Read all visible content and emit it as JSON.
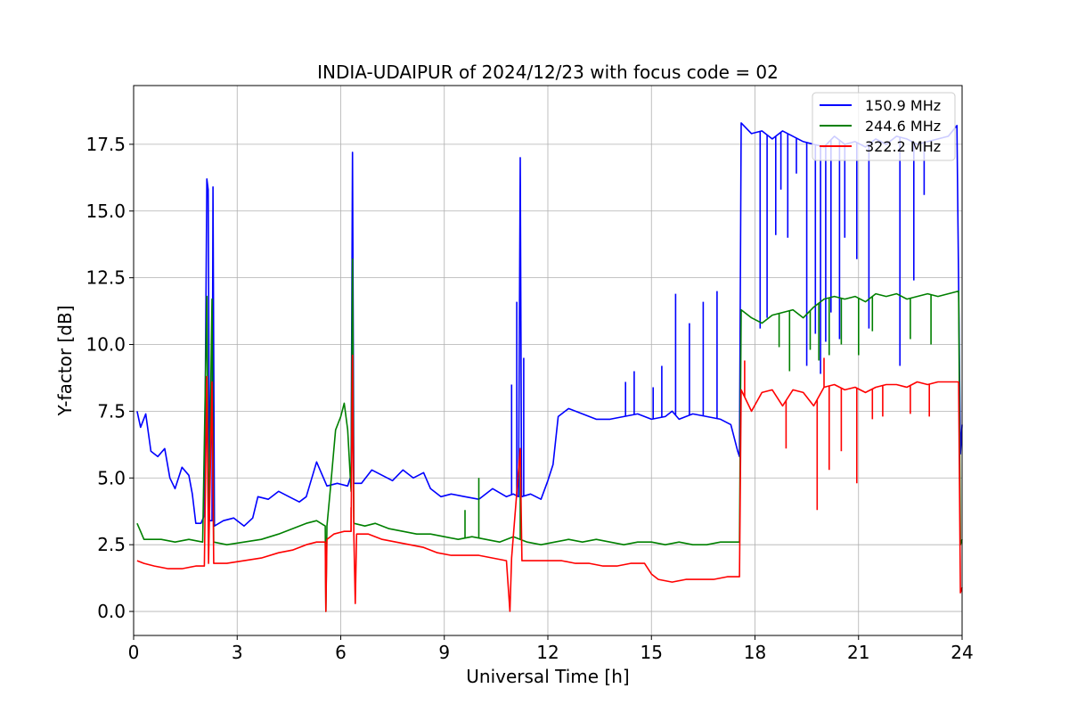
{
  "chart_data": {
    "type": "line",
    "title": "INDIA-UDAIPUR of 2024/12/23 with focus code = 02",
    "xlabel": "Universal Time [h]",
    "ylabel": "Y-factor [dB]",
    "xlim": [
      0,
      24
    ],
    "ylim": [
      -0.9,
      19.7
    ],
    "xticks": [
      0,
      3,
      6,
      9,
      12,
      15,
      18,
      21,
      24
    ],
    "yticks": [
      0.0,
      2.5,
      5.0,
      7.5,
      10.0,
      12.5,
      15.0,
      17.5
    ],
    "ytick_labels": [
      "0.0",
      "2.5",
      "5.0",
      "7.5",
      "10.0",
      "12.5",
      "15.0",
      "17.5"
    ],
    "grid": true,
    "legend_position": "top-right",
    "series": [
      {
        "name": "150.9 MHz",
        "color": "#0000ff",
        "points": [
          [
            0.1,
            7.5
          ],
          [
            0.2,
            6.9
          ],
          [
            0.35,
            7.4
          ],
          [
            0.5,
            6.0
          ],
          [
            0.7,
            5.8
          ],
          [
            0.9,
            6.1
          ],
          [
            1.05,
            5.0
          ],
          [
            1.2,
            4.6
          ],
          [
            1.4,
            5.4
          ],
          [
            1.6,
            5.1
          ],
          [
            1.7,
            4.4
          ],
          [
            1.8,
            3.3
          ],
          [
            1.95,
            3.3
          ],
          [
            2.05,
            3.6
          ],
          [
            2.12,
            16.2
          ],
          [
            2.16,
            15.8
          ],
          [
            2.2,
            3.4
          ],
          [
            2.27,
            3.4
          ],
          [
            2.3,
            15.9
          ],
          [
            2.34,
            3.2
          ],
          [
            2.6,
            3.4
          ],
          [
            2.9,
            3.5
          ],
          [
            3.2,
            3.2
          ],
          [
            3.45,
            3.5
          ],
          [
            3.6,
            4.3
          ],
          [
            3.9,
            4.2
          ],
          [
            4.2,
            4.5
          ],
          [
            4.5,
            4.3
          ],
          [
            4.8,
            4.1
          ],
          [
            5.0,
            4.3
          ],
          [
            5.3,
            5.6
          ],
          [
            5.6,
            4.7
          ],
          [
            5.9,
            4.8
          ],
          [
            6.2,
            4.7
          ],
          [
            6.3,
            5.1
          ],
          [
            6.34,
            17.2
          ],
          [
            6.38,
            4.8
          ],
          [
            6.6,
            4.8
          ],
          [
            6.9,
            5.3
          ],
          [
            7.2,
            5.1
          ],
          [
            7.5,
            4.9
          ],
          [
            7.8,
            5.3
          ],
          [
            8.1,
            5.0
          ],
          [
            8.4,
            5.2
          ],
          [
            8.6,
            4.6
          ],
          [
            8.9,
            4.3
          ],
          [
            9.2,
            4.4
          ],
          [
            9.6,
            4.3
          ],
          [
            10.0,
            4.2
          ],
          [
            10.4,
            4.6
          ],
          [
            10.8,
            4.3
          ],
          [
            11.0,
            4.4
          ],
          [
            11.15,
            4.3
          ],
          [
            11.2,
            17.0
          ],
          [
            11.24,
            4.3
          ],
          [
            11.5,
            4.4
          ],
          [
            11.8,
            4.2
          ],
          [
            12.0,
            4.9
          ],
          [
            12.15,
            5.5
          ],
          [
            12.3,
            7.3
          ],
          [
            12.6,
            7.6
          ],
          [
            13.0,
            7.4
          ],
          [
            13.4,
            7.2
          ],
          [
            13.8,
            7.2
          ],
          [
            14.2,
            7.3
          ],
          [
            14.6,
            7.4
          ],
          [
            15.0,
            7.2
          ],
          [
            15.4,
            7.3
          ],
          [
            15.6,
            7.5
          ],
          [
            15.8,
            7.2
          ],
          [
            16.2,
            7.4
          ],
          [
            16.6,
            7.3
          ],
          [
            17.0,
            7.2
          ],
          [
            17.3,
            7.0
          ],
          [
            17.5,
            6.0
          ],
          [
            17.55,
            5.8
          ],
          [
            17.6,
            18.3
          ],
          [
            17.9,
            17.9
          ],
          [
            18.2,
            18.0
          ],
          [
            18.5,
            17.7
          ],
          [
            18.8,
            18.0
          ],
          [
            19.1,
            17.8
          ],
          [
            19.4,
            17.6
          ],
          [
            19.7,
            17.5
          ],
          [
            20.0,
            17.4
          ],
          [
            20.3,
            17.8
          ],
          [
            20.6,
            17.5
          ],
          [
            20.9,
            17.6
          ],
          [
            21.2,
            17.4
          ],
          [
            21.5,
            17.7
          ],
          [
            21.8,
            17.5
          ],
          [
            22.1,
            17.8
          ],
          [
            22.4,
            17.7
          ],
          [
            22.7,
            17.5
          ],
          [
            23.0,
            17.6
          ],
          [
            23.3,
            17.7
          ],
          [
            23.6,
            17.8
          ],
          [
            23.85,
            18.2
          ],
          [
            23.95,
            5.9
          ],
          [
            24.0,
            7.0
          ]
        ],
        "spikes": [
          [
            18.15,
            10.6
          ],
          [
            18.35,
            11.0
          ],
          [
            18.6,
            14.1
          ],
          [
            18.75,
            15.8
          ],
          [
            18.95,
            14.0
          ],
          [
            19.2,
            16.4
          ],
          [
            19.5,
            9.2
          ],
          [
            19.75,
            10.4
          ],
          [
            19.9,
            8.9
          ],
          [
            20.05,
            10.1
          ],
          [
            20.2,
            11.2
          ],
          [
            20.45,
            10.2
          ],
          [
            20.6,
            14.0
          ],
          [
            20.95,
            13.2
          ],
          [
            21.3,
            10.6
          ],
          [
            22.2,
            9.2
          ],
          [
            22.6,
            12.4
          ],
          [
            22.9,
            15.6
          ],
          [
            15.3,
            9.2
          ],
          [
            15.7,
            11.9
          ],
          [
            16.1,
            10.8
          ],
          [
            16.5,
            11.6
          ],
          [
            16.9,
            12.0
          ],
          [
            10.95,
            8.5
          ],
          [
            11.1,
            11.6
          ],
          [
            11.3,
            9.5
          ],
          [
            14.25,
            8.6
          ],
          [
            14.5,
            9.0
          ],
          [
            15.05,
            8.4
          ]
        ]
      },
      {
        "name": "244.6 MHz",
        "color": "#008000",
        "points": [
          [
            0.1,
            3.3
          ],
          [
            0.2,
            3.0
          ],
          [
            0.3,
            2.7
          ],
          [
            0.8,
            2.7
          ],
          [
            1.2,
            2.6
          ],
          [
            1.6,
            2.7
          ],
          [
            2.0,
            2.6
          ],
          [
            2.12,
            11.8
          ],
          [
            2.17,
            2.6
          ],
          [
            2.27,
            11.7
          ],
          [
            2.32,
            2.6
          ],
          [
            2.7,
            2.5
          ],
          [
            3.2,
            2.6
          ],
          [
            3.7,
            2.7
          ],
          [
            4.2,
            2.9
          ],
          [
            4.6,
            3.1
          ],
          [
            5.0,
            3.3
          ],
          [
            5.3,
            3.4
          ],
          [
            5.55,
            3.2
          ],
          [
            5.57,
            0.0
          ],
          [
            5.6,
            3.2
          ],
          [
            5.7,
            4.6
          ],
          [
            5.85,
            6.8
          ],
          [
            6.0,
            7.3
          ],
          [
            6.1,
            7.8
          ],
          [
            6.2,
            6.8
          ],
          [
            6.3,
            4.5
          ],
          [
            6.34,
            13.2
          ],
          [
            6.38,
            3.3
          ],
          [
            6.7,
            3.2
          ],
          [
            7.0,
            3.3
          ],
          [
            7.4,
            3.1
          ],
          [
            7.8,
            3.0
          ],
          [
            8.2,
            2.9
          ],
          [
            8.6,
            2.9
          ],
          [
            9.0,
            2.8
          ],
          [
            9.4,
            2.7
          ],
          [
            9.8,
            2.8
          ],
          [
            10.2,
            2.7
          ],
          [
            10.6,
            2.6
          ],
          [
            11.0,
            2.8
          ],
          [
            11.4,
            2.6
          ],
          [
            11.8,
            2.5
          ],
          [
            12.2,
            2.6
          ],
          [
            12.6,
            2.7
          ],
          [
            13.0,
            2.6
          ],
          [
            13.4,
            2.7
          ],
          [
            13.8,
            2.6
          ],
          [
            14.2,
            2.5
          ],
          [
            14.6,
            2.6
          ],
          [
            15.0,
            2.6
          ],
          [
            15.4,
            2.5
          ],
          [
            15.8,
            2.6
          ],
          [
            16.2,
            2.5
          ],
          [
            16.6,
            2.5
          ],
          [
            17.0,
            2.6
          ],
          [
            17.3,
            2.6
          ],
          [
            17.55,
            2.6
          ],
          [
            17.6,
            11.3
          ],
          [
            17.9,
            11.0
          ],
          [
            18.2,
            10.8
          ],
          [
            18.5,
            11.1
          ],
          [
            18.8,
            11.2
          ],
          [
            19.1,
            11.3
          ],
          [
            19.4,
            11.0
          ],
          [
            19.7,
            11.4
          ],
          [
            20.0,
            11.7
          ],
          [
            20.3,
            11.8
          ],
          [
            20.6,
            11.7
          ],
          [
            20.9,
            11.8
          ],
          [
            21.2,
            11.6
          ],
          [
            21.5,
            11.9
          ],
          [
            21.8,
            11.8
          ],
          [
            22.1,
            11.9
          ],
          [
            22.4,
            11.7
          ],
          [
            22.7,
            11.8
          ],
          [
            23.0,
            11.9
          ],
          [
            23.3,
            11.8
          ],
          [
            23.6,
            11.9
          ],
          [
            23.9,
            12.0
          ],
          [
            23.95,
            2.5
          ],
          [
            24.0,
            2.7
          ]
        ],
        "spikes": [
          [
            10.0,
            5.0
          ],
          [
            11.2,
            6.0
          ],
          [
            9.6,
            3.8
          ],
          [
            18.7,
            9.9
          ],
          [
            19.0,
            9.0
          ],
          [
            19.6,
            9.8
          ],
          [
            19.85,
            9.4
          ],
          [
            20.15,
            9.6
          ],
          [
            20.5,
            10.0
          ],
          [
            21.0,
            9.6
          ],
          [
            21.4,
            10.5
          ],
          [
            22.5,
            10.2
          ],
          [
            23.1,
            10.0
          ]
        ]
      },
      {
        "name": "322.2 MHz",
        "color": "#ff0000",
        "points": [
          [
            0.1,
            1.9
          ],
          [
            0.3,
            1.8
          ],
          [
            0.6,
            1.7
          ],
          [
            1.0,
            1.6
          ],
          [
            1.4,
            1.6
          ],
          [
            1.8,
            1.7
          ],
          [
            2.05,
            1.7
          ],
          [
            2.12,
            8.8
          ],
          [
            2.17,
            1.8
          ],
          [
            2.27,
            8.6
          ],
          [
            2.32,
            1.8
          ],
          [
            2.7,
            1.8
          ],
          [
            3.2,
            1.9
          ],
          [
            3.7,
            2.0
          ],
          [
            4.2,
            2.2
          ],
          [
            4.6,
            2.3
          ],
          [
            5.0,
            2.5
          ],
          [
            5.3,
            2.6
          ],
          [
            5.55,
            2.6
          ],
          [
            5.57,
            0.0
          ],
          [
            5.6,
            2.7
          ],
          [
            5.8,
            2.9
          ],
          [
            6.1,
            3.0
          ],
          [
            6.3,
            3.0
          ],
          [
            6.34,
            9.6
          ],
          [
            6.38,
            2.9
          ],
          [
            6.42,
            0.3
          ],
          [
            6.46,
            2.9
          ],
          [
            6.8,
            2.9
          ],
          [
            7.2,
            2.7
          ],
          [
            7.6,
            2.6
          ],
          [
            8.0,
            2.5
          ],
          [
            8.4,
            2.4
          ],
          [
            8.8,
            2.2
          ],
          [
            9.2,
            2.1
          ],
          [
            9.6,
            2.1
          ],
          [
            10.0,
            2.1
          ],
          [
            10.4,
            2.0
          ],
          [
            10.8,
            1.9
          ],
          [
            10.9,
            0.0
          ],
          [
            10.95,
            2.0
          ],
          [
            11.2,
            6.1
          ],
          [
            11.25,
            1.9
          ],
          [
            11.6,
            1.9
          ],
          [
            12.0,
            1.9
          ],
          [
            12.4,
            1.9
          ],
          [
            12.8,
            1.8
          ],
          [
            13.2,
            1.8
          ],
          [
            13.6,
            1.7
          ],
          [
            14.0,
            1.7
          ],
          [
            14.4,
            1.8
          ],
          [
            14.8,
            1.8
          ],
          [
            15.0,
            1.4
          ],
          [
            15.2,
            1.2
          ],
          [
            15.6,
            1.1
          ],
          [
            16.0,
            1.2
          ],
          [
            16.4,
            1.2
          ],
          [
            16.8,
            1.2
          ],
          [
            17.2,
            1.3
          ],
          [
            17.55,
            1.3
          ],
          [
            17.6,
            8.3
          ],
          [
            17.9,
            7.5
          ],
          [
            18.2,
            8.2
          ],
          [
            18.5,
            8.3
          ],
          [
            18.8,
            7.7
          ],
          [
            19.1,
            8.3
          ],
          [
            19.4,
            8.2
          ],
          [
            19.7,
            7.7
          ],
          [
            20.0,
            8.4
          ],
          [
            20.3,
            8.5
          ],
          [
            20.6,
            8.3
          ],
          [
            20.9,
            8.4
          ],
          [
            21.2,
            8.2
          ],
          [
            21.5,
            8.4
          ],
          [
            21.8,
            8.5
          ],
          [
            22.1,
            8.5
          ],
          [
            22.4,
            8.4
          ],
          [
            22.7,
            8.6
          ],
          [
            23.0,
            8.5
          ],
          [
            23.3,
            8.6
          ],
          [
            23.6,
            8.6
          ],
          [
            23.9,
            8.6
          ],
          [
            23.95,
            0.7
          ],
          [
            24.0,
            0.9
          ]
        ],
        "spikes": [
          [
            17.7,
            9.4
          ],
          [
            18.9,
            6.1
          ],
          [
            19.8,
            3.8
          ],
          [
            20.0,
            9.5
          ],
          [
            20.15,
            5.3
          ],
          [
            20.5,
            6.0
          ],
          [
            20.95,
            4.8
          ],
          [
            21.4,
            7.2
          ],
          [
            21.7,
            7.3
          ],
          [
            22.5,
            7.4
          ],
          [
            23.05,
            7.3
          ],
          [
            6.3,
            3.9
          ]
        ]
      }
    ]
  }
}
